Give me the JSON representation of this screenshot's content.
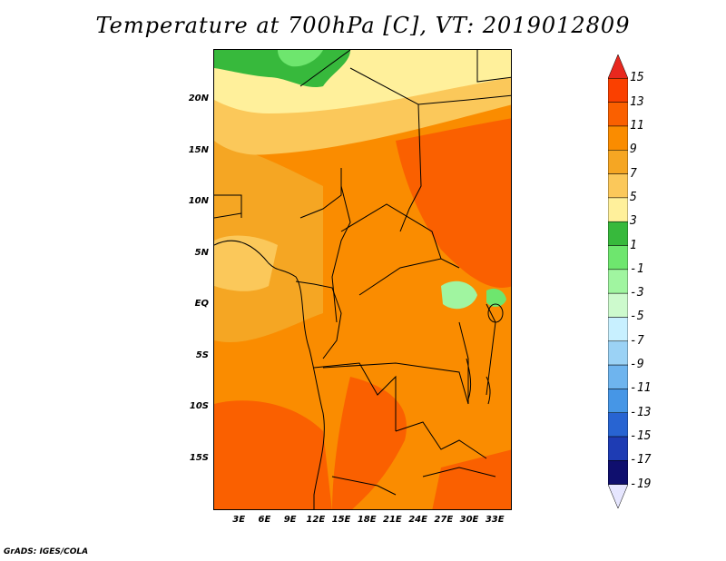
{
  "title": "Temperature at 700hPa [C], VT: 2019012809",
  "footer": "GrADS: IGES/COLA",
  "map": {
    "lat_ticks": [
      "20N",
      "15N",
      "10N",
      "5N",
      "EQ",
      "5S",
      "10S",
      "15S"
    ],
    "lon_ticks": [
      "3E",
      "6E",
      "9E",
      "12E",
      "15E",
      "18E",
      "21E",
      "24E",
      "27E",
      "30E",
      "33E"
    ],
    "lat_values": [
      20,
      15,
      10,
      5,
      0,
      -5,
      -10,
      -15
    ],
    "lon_values": [
      3,
      6,
      9,
      12,
      15,
      18,
      21,
      24,
      27,
      30,
      33
    ],
    "lat_range": [
      -20,
      25
    ],
    "lon_range": [
      0,
      35
    ]
  },
  "colorbar": {
    "labels": [
      "15",
      "13",
      "11",
      "9",
      "7",
      "5",
      "3",
      "1",
      "-1",
      "-3",
      "-5",
      "-7",
      "-9",
      "-11",
      "-13",
      "-15",
      "-17",
      "-19"
    ],
    "colors": [
      "#e8281e",
      "#fa4000",
      "#fa6000",
      "#fa8c00",
      "#f5a623",
      "#fbc85a",
      "#fff09b",
      "#37b93c",
      "#6ee66e",
      "#a0f5a0",
      "#cdfacd",
      "#c8f0ff",
      "#9bd2f5",
      "#6eb4ee",
      "#4696e6",
      "#2864d2",
      "#1e3cb4",
      "#0f0f6e",
      "#e6e6ff"
    ]
  }
}
